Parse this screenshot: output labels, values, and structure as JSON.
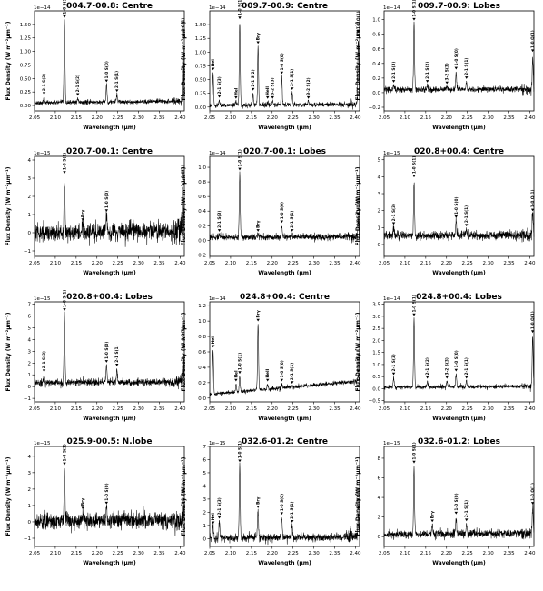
{
  "figure": {
    "xlabel": "Wavelength (μm)",
    "ylabel": "Flux Density (W m⁻²μm⁻¹)"
  },
  "chart_data": [
    {
      "type": "line",
      "title": "004.7-00.8: Centre",
      "multiplier": "1e−14",
      "xlim": [
        2.05,
        2.41
      ],
      "ylim": [
        -0.1,
        1.75
      ],
      "xticks": [
        2.05,
        2.1,
        2.15,
        2.2,
        2.25,
        2.3,
        2.35,
        2.4
      ],
      "yticks": [
        0.0,
        0.25,
        0.5,
        0.75,
        1.0,
        1.25,
        1.5
      ],
      "ytick_labels": [
        "0.00",
        "0.25",
        "0.50",
        "0.75",
        "1.00",
        "1.25",
        "1.50"
      ],
      "baseline": [
        [
          2.05,
          0.05
        ],
        [
          2.41,
          0.08
        ]
      ],
      "noise": 0.02,
      "lines": [
        {
          "label": "2-1 S(3)",
          "x": 2.073,
          "peak": 0.15
        },
        {
          "label": "1-0 S(1)",
          "x": 2.122,
          "peak": 1.57
        },
        {
          "label": "2-1 S(2)",
          "x": 2.154,
          "peak": 0.13
        },
        {
          "label": "1-0 S(0)",
          "x": 2.223,
          "peak": 0.38
        },
        {
          "label": "2-1 S(1)",
          "x": 2.248,
          "peak": 0.2
        },
        {
          "label": "1-0 Q(1)",
          "x": 2.407,
          "peak": 1.17
        }
      ]
    },
    {
      "type": "line",
      "title": "009.7-00.9: Centre",
      "multiplier": "1e−14",
      "xlim": [
        2.05,
        2.41
      ],
      "ylim": [
        -0.07,
        1.75
      ],
      "xticks": [
        2.05,
        2.1,
        2.15,
        2.2,
        2.25,
        2.3,
        2.35,
        2.4
      ],
      "yticks": [
        0.0,
        0.25,
        0.5,
        0.75,
        1.0,
        1.25,
        1.5
      ],
      "ytick_labels": [
        "0.00",
        "0.25",
        "0.50",
        "0.75",
        "1.00",
        "1.25",
        "1.50"
      ],
      "baseline": [
        [
          2.05,
          0.03
        ],
        [
          2.41,
          0.05
        ]
      ],
      "noise": 0.02,
      "lines": [
        {
          "label": "HeI",
          "x": 2.058,
          "peak": 0.62
        },
        {
          "label": "2-1 S(3)",
          "x": 2.073,
          "peak": 0.12
        },
        {
          "label": "HeI",
          "x": 2.113,
          "peak": 0.1
        },
        {
          "label": "1-0 S(1)",
          "x": 2.122,
          "peak": 1.55
        },
        {
          "label": "2-1 S(2)",
          "x": 2.154,
          "peak": 0.25
        },
        {
          "label": "Brγ",
          "x": 2.166,
          "peak": 1.1
        },
        {
          "label": "HeII",
          "x": 2.189,
          "peak": 0.1
        },
        {
          "label": "3-2 S(3)",
          "x": 2.201,
          "peak": 0.1
        },
        {
          "label": "1-0 S(0)",
          "x": 2.223,
          "peak": 0.55
        },
        {
          "label": "2-1 S(1)",
          "x": 2.248,
          "peak": 0.26
        },
        {
          "label": "3-2 S(2)",
          "x": 2.287,
          "peak": 0.1
        },
        {
          "label": "1-0 Q(1)",
          "x": 2.407,
          "peak": 1.3
        }
      ]
    },
    {
      "type": "line",
      "title": "009.7-00.9: Lobes",
      "multiplier": "1e−14",
      "xlim": [
        2.05,
        2.41
      ],
      "ylim": [
        -0.25,
        1.12
      ],
      "xticks": [
        2.05,
        2.1,
        2.15,
        2.2,
        2.25,
        2.3,
        2.35,
        2.4
      ],
      "yticks": [
        -0.2,
        0.0,
        0.2,
        0.4,
        0.6,
        0.8,
        1.0
      ],
      "ytick_labels": [
        "−0.2",
        "0.0",
        "0.2",
        "0.4",
        "0.6",
        "0.8",
        "1.0"
      ],
      "baseline": [
        [
          2.05,
          0.04
        ],
        [
          2.41,
          0.05
        ]
      ],
      "noise": 0.02,
      "lines": [
        {
          "label": "2-1 S(3)",
          "x": 2.073,
          "peak": 0.1
        },
        {
          "label": "1-0 S(1)",
          "x": 2.122,
          "peak": 0.95
        },
        {
          "label": "2-1 S(2)",
          "x": 2.154,
          "peak": 0.1
        },
        {
          "label": "3-2 S(3)",
          "x": 2.201,
          "peak": 0.08
        },
        {
          "label": "1-0 S(0)",
          "x": 2.223,
          "peak": 0.28
        },
        {
          "label": "2-1 S(1)",
          "x": 2.248,
          "peak": 0.15
        },
        {
          "label": "1-0 Q(1)",
          "x": 2.407,
          "peak": 0.52
        }
      ]
    },
    {
      "type": "line",
      "title": "020.7-00.1: Centre",
      "multiplier": "1e−15",
      "xlim": [
        2.05,
        2.41
      ],
      "ylim": [
        -1.3,
        4.2
      ],
      "xticks": [
        2.05,
        2.1,
        2.15,
        2.2,
        2.25,
        2.3,
        2.35,
        2.4
      ],
      "yticks": [
        -1,
        0,
        1,
        2,
        3,
        4
      ],
      "ytick_labels": [
        "−1",
        "0",
        "1",
        "2",
        "3",
        "4"
      ],
      "baseline": [
        [
          2.05,
          0.0
        ],
        [
          2.41,
          0.1
        ]
      ],
      "noise": 0.25,
      "lines": [
        {
          "label": "1-0 S(1)",
          "x": 2.122,
          "peak": 3.1
        },
        {
          "label": "Brγ",
          "x": 2.166,
          "peak": 0.5
        },
        {
          "label": "1-0 S(0)",
          "x": 2.223,
          "peak": 1.0
        },
        {
          "label": "1-0 Q(1)",
          "x": 2.407,
          "peak": 2.4
        }
      ]
    },
    {
      "type": "line",
      "title": "020.7-00.1: Lobes",
      "multiplier": "1e−14",
      "xlim": [
        2.05,
        2.41
      ],
      "ylim": [
        -0.22,
        1.15
      ],
      "xticks": [
        2.05,
        2.1,
        2.15,
        2.2,
        2.25,
        2.3,
        2.35,
        2.4
      ],
      "yticks": [
        -0.2,
        0.0,
        0.2,
        0.4,
        0.6,
        0.8,
        1.0
      ],
      "ytick_labels": [
        "−0.2",
        "0.0",
        "0.2",
        "0.4",
        "0.6",
        "0.8",
        "1.0"
      ],
      "baseline": [
        [
          2.05,
          0.04
        ],
        [
          2.41,
          0.05
        ]
      ],
      "noise": 0.02,
      "lines": [
        {
          "label": "2-1 S(3)",
          "x": 2.073,
          "peak": 0.08
        },
        {
          "label": "1-0 S(1)",
          "x": 2.122,
          "peak": 0.92
        },
        {
          "label": "Brγ",
          "x": 2.166,
          "peak": 0.08
        },
        {
          "label": "1-0 S(0)",
          "x": 2.223,
          "peak": 0.2
        },
        {
          "label": "2-1 S(1)",
          "x": 2.248,
          "peak": 0.08
        },
        {
          "label": "1-0 Q(1)",
          "x": 2.407,
          "peak": 0.3
        }
      ]
    },
    {
      "type": "line",
      "title": "020.8+00.4: Centre",
      "multiplier": "1e−15",
      "xlim": [
        2.05,
        2.41
      ],
      "ylim": [
        -0.7,
        5.2
      ],
      "xticks": [
        2.05,
        2.1,
        2.15,
        2.2,
        2.25,
        2.3,
        2.35,
        2.4
      ],
      "yticks": [
        0,
        1,
        2,
        3,
        4,
        5
      ],
      "ytick_labels": [
        "0",
        "1",
        "2",
        "3",
        "4",
        "5"
      ],
      "baseline": [
        [
          2.05,
          0.5
        ],
        [
          2.41,
          0.55
        ]
      ],
      "noise": 0.12,
      "lines": [
        {
          "label": "2-1 S(3)",
          "x": 2.073,
          "peak": 1.0
        },
        {
          "label": "1-0 S(1)",
          "x": 2.122,
          "peak": 3.8
        },
        {
          "label": "1-0 S(0)",
          "x": 2.223,
          "peak": 1.4
        },
        {
          "label": "2-1 S(1)",
          "x": 2.248,
          "peak": 0.9
        },
        {
          "label": "1-0 Q(1)",
          "x": 2.407,
          "peak": 1.8
        }
      ]
    },
    {
      "type": "line",
      "title": "020.8+00.4: Lobes",
      "multiplier": "1e−15",
      "xlim": [
        2.05,
        2.41
      ],
      "ylim": [
        -1.3,
        7.2
      ],
      "xticks": [
        2.05,
        2.1,
        2.15,
        2.2,
        2.25,
        2.3,
        2.35,
        2.4
      ],
      "yticks": [
        -1,
        0,
        1,
        2,
        3,
        4,
        5,
        6,
        7
      ],
      "ytick_labels": [
        "−1",
        "0",
        "1",
        "2",
        "3",
        "4",
        "5",
        "6",
        "7"
      ],
      "baseline": [
        [
          2.05,
          0.3
        ],
        [
          2.41,
          0.4
        ]
      ],
      "noise": 0.15,
      "lines": [
        {
          "label": "2-1 S(3)",
          "x": 2.073,
          "peak": 1.0
        },
        {
          "label": "1-0 S(1)",
          "x": 2.122,
          "peak": 6.2
        },
        {
          "label": "1-0 S(0)",
          "x": 2.223,
          "peak": 1.8
        },
        {
          "label": "2-1 S(1)",
          "x": 2.248,
          "peak": 1.5
        },
        {
          "label": "1-0 Q(1)",
          "x": 2.407,
          "peak": 3.0
        }
      ]
    },
    {
      "type": "line",
      "title": "024.8+00.4: Centre",
      "multiplier": "1e−14",
      "xlim": [
        2.05,
        2.41
      ],
      "ylim": [
        -0.05,
        1.25
      ],
      "xticks": [
        2.05,
        2.1,
        2.15,
        2.2,
        2.25,
        2.3,
        2.35,
        2.4
      ],
      "yticks": [
        0.0,
        0.2,
        0.4,
        0.6,
        0.8,
        1.0,
        1.2
      ],
      "ytick_labels": [
        "0.0",
        "0.2",
        "0.4",
        "0.6",
        "0.8",
        "1.0",
        "1.2"
      ],
      "baseline": [
        [
          2.05,
          0.05
        ],
        [
          2.41,
          0.22
        ]
      ],
      "noise": 0.012,
      "lines": [
        {
          "label": "HeI",
          "x": 2.058,
          "peak": 0.62
        },
        {
          "label": "HeI",
          "x": 2.113,
          "peak": 0.18
        },
        {
          "label": "1-0 S(1)",
          "x": 2.122,
          "peak": 0.28
        },
        {
          "label": "Brγ",
          "x": 2.166,
          "peak": 0.96
        },
        {
          "label": "HeII",
          "x": 2.189,
          "peak": 0.18
        },
        {
          "label": "1-0 S(0)",
          "x": 2.223,
          "peak": 0.18
        },
        {
          "label": "2-1 S(1)",
          "x": 2.248,
          "peak": 0.15
        },
        {
          "label": "1-0 Q(1)",
          "x": 2.407,
          "peak": 0.3
        }
      ]
    },
    {
      "type": "line",
      "title": "024.8+00.4: Lobes",
      "multiplier": "1e−14",
      "xlim": [
        2.05,
        2.41
      ],
      "ylim": [
        -0.55,
        3.6
      ],
      "xticks": [
        2.05,
        2.1,
        2.15,
        2.2,
        2.25,
        2.3,
        2.35,
        2.4
      ],
      "yticks": [
        -0.5,
        0.0,
        0.5,
        1.0,
        1.5,
        2.0,
        2.5,
        3.0,
        3.5
      ],
      "ytick_labels": [
        "−0.5",
        "0.0",
        "0.5",
        "1.0",
        "1.5",
        "2.0",
        "2.5",
        "3.0",
        "3.5"
      ],
      "baseline": [
        [
          2.05,
          0.05
        ],
        [
          2.41,
          0.1
        ]
      ],
      "noise": 0.04,
      "lines": [
        {
          "label": "2-1 S(3)",
          "x": 2.073,
          "peak": 0.45
        },
        {
          "label": "1-0 S(1)",
          "x": 2.122,
          "peak": 2.9
        },
        {
          "label": "2-1 S(2)",
          "x": 2.154,
          "peak": 0.3
        },
        {
          "label": "3-2 S(3)",
          "x": 2.201,
          "peak": 0.3
        },
        {
          "label": "1-0 S(0)",
          "x": 2.223,
          "peak": 0.6
        },
        {
          "label": "2-1 S(1)",
          "x": 2.248,
          "peak": 0.3
        },
        {
          "label": "1-0 Q(1)",
          "x": 2.407,
          "peak": 2.2
        }
      ]
    },
    {
      "type": "line",
      "title": "025.9-00.5: N.lobe",
      "multiplier": "1e−15",
      "xlim": [
        2.05,
        2.41
      ],
      "ylim": [
        -1.5,
        4.6
      ],
      "xticks": [
        2.05,
        2.1,
        2.15,
        2.2,
        2.25,
        2.3,
        2.35,
        2.4
      ],
      "yticks": [
        -1,
        0,
        1,
        2,
        3,
        4
      ],
      "ytick_labels": [
        "−1",
        "0",
        "1",
        "2",
        "3",
        "4"
      ],
      "baseline": [
        [
          2.05,
          0.05
        ],
        [
          2.41,
          0.1
        ]
      ],
      "noise": 0.25,
      "lines": [
        {
          "label": "1-0 S(1)",
          "x": 2.122,
          "peak": 3.3
        },
        {
          "label": "Brγ",
          "x": 2.166,
          "peak": 0.6
        },
        {
          "label": "1-0 S(0)",
          "x": 2.223,
          "peak": 0.9
        },
        {
          "label": "1-0 Q(1)",
          "x": 2.407,
          "peak": 0.9
        }
      ]
    },
    {
      "type": "line",
      "title": "032.6-01.2: Centre",
      "multiplier": "1e−15",
      "xlim": [
        2.05,
        2.41
      ],
      "ylim": [
        -0.6,
        7.0
      ],
      "xticks": [
        2.05,
        2.1,
        2.15,
        2.2,
        2.25,
        2.3,
        2.35,
        2.4
      ],
      "yticks": [
        0,
        1,
        2,
        3,
        4,
        5,
        6,
        7
      ],
      "ytick_labels": [
        "0",
        "1",
        "2",
        "3",
        "4",
        "5",
        "6",
        "7"
      ],
      "baseline": [
        [
          2.05,
          0.05
        ],
        [
          2.41,
          0.1
        ]
      ],
      "noise": 0.15,
      "lines": [
        {
          "label": "HeI",
          "x": 2.058,
          "peak": 0.9
        },
        {
          "label": "2-1 S(3)",
          "x": 2.073,
          "peak": 1.3
        },
        {
          "label": "1-0 S(1)",
          "x": 2.122,
          "peak": 5.6
        },
        {
          "label": "Brγ",
          "x": 2.166,
          "peak": 2.1
        },
        {
          "label": "1-0 S(0)",
          "x": 2.223,
          "peak": 1.6
        },
        {
          "label": "2-1 S(1)",
          "x": 2.248,
          "peak": 1.0
        },
        {
          "label": "1-0 Q(1)",
          "x": 2.407,
          "peak": 2.0
        }
      ]
    },
    {
      "type": "line",
      "title": "032.6-01.2: Lobes",
      "multiplier": "1e−15",
      "xlim": [
        2.05,
        2.41
      ],
      "ylim": [
        -1.0,
        9.2
      ],
      "xticks": [
        2.05,
        2.1,
        2.15,
        2.2,
        2.25,
        2.3,
        2.35,
        2.4
      ],
      "yticks": [
        0,
        2,
        4,
        6,
        8
      ],
      "ytick_labels": [
        "0",
        "2",
        "4",
        "6",
        "8"
      ],
      "baseline": [
        [
          2.05,
          0.2
        ],
        [
          2.41,
          0.4
        ]
      ],
      "noise": 0.2,
      "lines": [
        {
          "label": "1-0 S(1)",
          "x": 2.122,
          "peak": 7.2
        },
        {
          "label": "Brγ",
          "x": 2.166,
          "peak": 1.2
        },
        {
          "label": "1-0 S(0)",
          "x": 2.223,
          "peak": 2.0
        },
        {
          "label": "2-1 S(1)",
          "x": 2.248,
          "peak": 1.3
        },
        {
          "label": "1-0 Q(1)",
          "x": 2.407,
          "peak": 3.0
        }
      ]
    }
  ]
}
